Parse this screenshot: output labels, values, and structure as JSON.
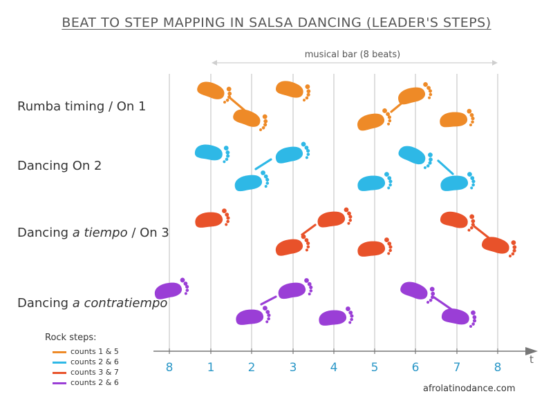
{
  "title": "BEAT TO STEP MAPPING IN SALSA DANCING (LEADER'S STEPS)",
  "bar_label": "musical bar (8 beats)",
  "axis_label": "t",
  "beats": [
    "8",
    "1",
    "2",
    "3",
    "4",
    "5",
    "6",
    "7",
    "8"
  ],
  "rows": [
    {
      "label_pre": "Rumba timing / On 1",
      "label_em": "",
      "label_post": ""
    },
    {
      "label_pre": "Dancing On 2",
      "label_em": "",
      "label_post": ""
    },
    {
      "label_pre": "Dancing ",
      "label_em": "a tiempo",
      "label_post": " / On 3"
    },
    {
      "label_pre": "Dancing ",
      "label_em": "a contratiempo",
      "label_post": ""
    }
  ],
  "legend": {
    "title": "Rock steps:",
    "items": [
      {
        "label": "counts 1 & 5",
        "color": "#ee8a27"
      },
      {
        "label": "counts 2 & 6",
        "color": "#2eb8e6"
      },
      {
        "label": "counts 3 & 7",
        "color": "#e8522a"
      },
      {
        "label": "counts 2 & 6",
        "color": "#9a3ed6"
      }
    ]
  },
  "credit": "afrolatinodance.com"
}
